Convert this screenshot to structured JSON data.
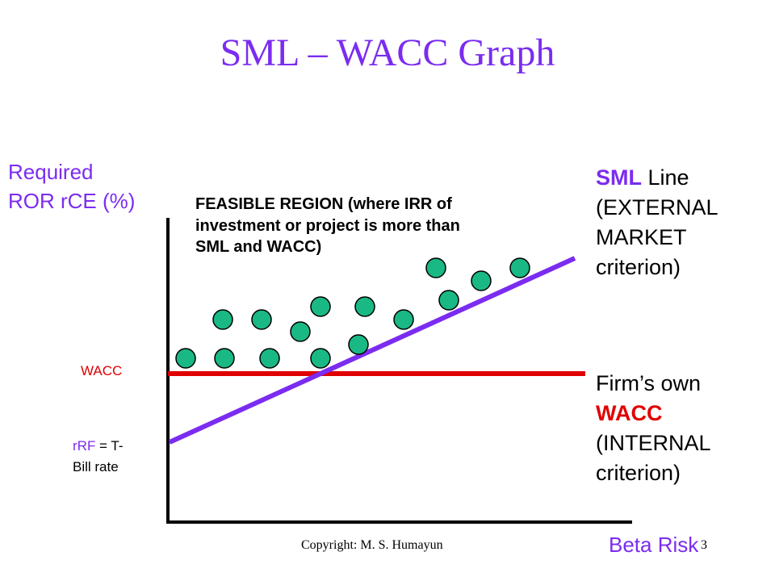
{
  "slide": {
    "title": "SML – WACC Graph",
    "copyright": "Copyright: M. S. Humayun",
    "slide_number": "3"
  },
  "chart_data": {
    "type": "scatter",
    "ylabel_line1": "Required",
    "ylabel_line2": "ROR rCE (%)",
    "xlabel": "Beta Risk",
    "feasible_region": {
      "label_bold": "FEASIBLE REGION",
      "label_rest": " (where IRR of investment or project is more than SML and WACC)"
    },
    "sml": {
      "name_bold": "SML",
      "name_rest": " Line",
      "desc_line2": "(EXTERNAL",
      "desc_line3": "MARKET",
      "desc_line4": "criterion)",
      "color": "#7b2cf0"
    },
    "wacc": {
      "name_line1": "Firm’s own",
      "name_bold": "WACC",
      "desc_line3": "(INTERNAL",
      "desc_line4": "criterion)",
      "axis_label": "WACC",
      "color": "#e00000"
    },
    "rrf": {
      "label_colored": "rRF",
      "label_rest": " = T-",
      "label_line2": "Bill rate"
    },
    "point_color": "#1ab885",
    "axis_color": "#000000"
  }
}
